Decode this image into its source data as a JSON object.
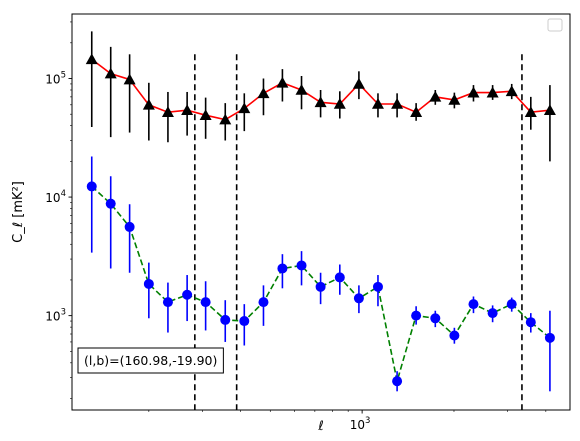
{
  "chart_data": {
    "type": "scatter",
    "xscale": "log",
    "yscale": "log",
    "xlim": [
      112,
      4800
    ],
    "ylim": [
      160,
      350000
    ],
    "xlabel": "ℓ",
    "ylabel": "C_ℓ [mK²]",
    "xticks": [
      {
        "value": 1000,
        "base": "10",
        "exp": "3"
      }
    ],
    "yticks": [
      {
        "value": 1000,
        "base": "10",
        "exp": "3"
      },
      {
        "value": 10000,
        "base": "10",
        "exp": "4"
      },
      {
        "value": 100000,
        "base": "10",
        "exp": "5"
      }
    ],
    "vlines": [
      283,
      388,
      3340
    ],
    "annotation": "(l,b)=(160.98,-19.90)",
    "legend": {
      "position": "top-right",
      "entries": []
    },
    "series": [
      {
        "marker": "triangle",
        "color": "#000000",
        "line_color": "#ff0000",
        "linestyle": "solid",
        "x": [
          130,
          150,
          173,
          200,
          231,
          267,
          307,
          356,
          411,
          475,
          548,
          633,
          731,
          845,
          976,
          1127,
          1302,
          1503,
          1737,
          2006,
          2317,
          2677,
          3092,
          3571,
          4125
        ],
        "y": [
          145000,
          110000,
          98000,
          60000,
          52000,
          54000,
          49000,
          45000,
          56000,
          75000,
          92000,
          80000,
          63000,
          61000,
          90000,
          61000,
          61000,
          52000,
          70000,
          66000,
          76000,
          76000,
          78000,
          52000,
          54000
        ],
        "ylow": [
          39000,
          32000,
          35000,
          30000,
          29000,
          33000,
          31000,
          30000,
          36000,
          49000,
          64000,
          55000,
          47000,
          46000,
          67000,
          47000,
          47000,
          44000,
          60000,
          56000,
          64000,
          66000,
          67000,
          37000,
          20000
        ],
        "yhigh": [
          250000,
          185000,
          160000,
          92000,
          77000,
          77000,
          69000,
          62000,
          75000,
          100000,
          120000,
          105000,
          80000,
          78000,
          115000,
          75000,
          75000,
          62000,
          80000,
          76000,
          88000,
          88000,
          90000,
          70000,
          88000
        ]
      },
      {
        "marker": "circle",
        "color": "#0000ff",
        "line_color": "#008000",
        "linestyle": "dashed",
        "x": [
          130,
          150,
          173,
          200,
          231,
          267,
          307,
          356,
          411,
          475,
          548,
          633,
          731,
          845,
          976,
          1127,
          1302,
          1503,
          1737,
          2006,
          2317,
          2677,
          3092,
          3571,
          4125
        ],
        "y": [
          12300,
          8800,
          5600,
          1850,
          1300,
          1500,
          1300,
          920,
          900,
          1300,
          2500,
          2650,
          1750,
          2100,
          1400,
          1750,
          280,
          1000,
          950,
          680,
          1250,
          1050,
          1250,
          880,
          650
        ],
        "ylow": [
          3400,
          2500,
          2300,
          950,
          720,
          900,
          750,
          600,
          560,
          820,
          1700,
          1800,
          1250,
          1500,
          1050,
          1200,
          230,
          840,
          800,
          580,
          1050,
          880,
          1080,
          720,
          230
        ],
        "yhigh": [
          22000,
          15000,
          8700,
          2800,
          1900,
          2200,
          1950,
          1350,
          1250,
          1800,
          3300,
          3500,
          2300,
          2700,
          1800,
          2200,
          340,
          1200,
          1100,
          790,
          1450,
          1220,
          1420,
          1050,
          1100
        ]
      }
    ]
  }
}
